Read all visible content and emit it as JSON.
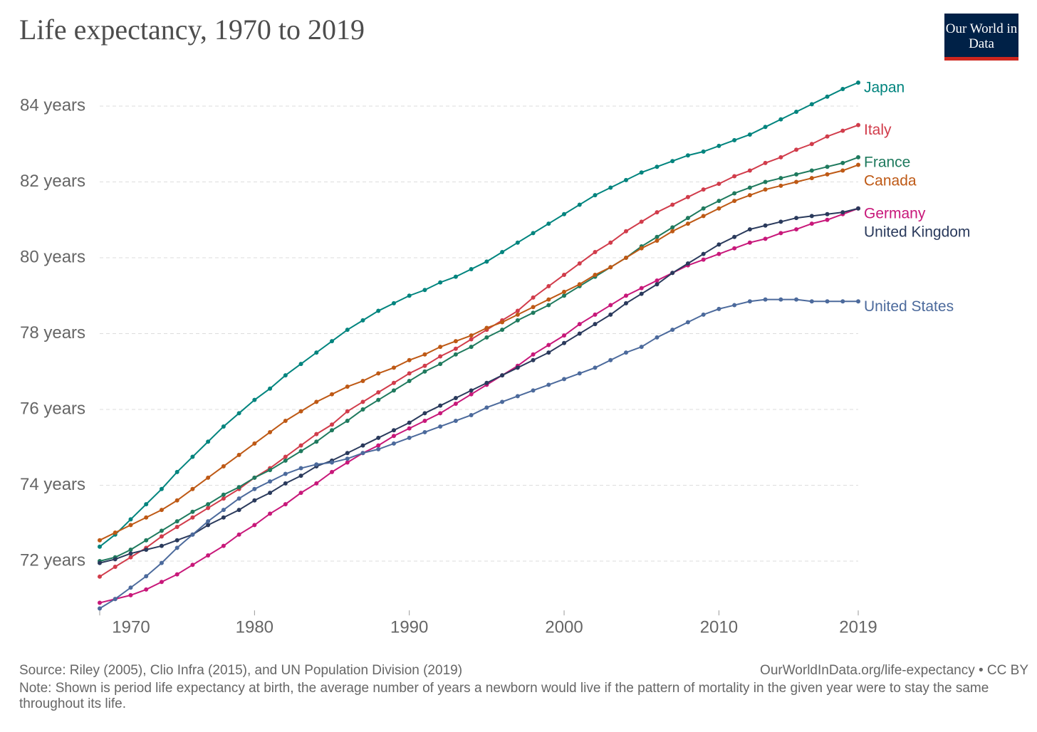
{
  "title": "Life expectancy, 1970 to 2019",
  "logo": "Our World in Data",
  "source": "Source: Riley (2005), Clio Infra (2015), and UN Population Division (2019)",
  "url": "OurWorldInData.org/life-expectancy • CC BY",
  "note": "Note: Shown is period life expectancy at birth, the average number of years a newborn would live if the pattern of mortality in the given year were to stay the same throughout its life.",
  "chart_data": {
    "type": "line",
    "x": [
      1970,
      1971,
      1972,
      1973,
      1974,
      1975,
      1976,
      1977,
      1978,
      1979,
      1980,
      1981,
      1982,
      1983,
      1984,
      1985,
      1986,
      1987,
      1988,
      1989,
      1990,
      1991,
      1992,
      1993,
      1994,
      1995,
      1996,
      1997,
      1998,
      1999,
      2000,
      2001,
      2002,
      2003,
      2004,
      2005,
      2006,
      2007,
      2008,
      2009,
      2010,
      2011,
      2012,
      2013,
      2014,
      2015,
      2016,
      2017,
      2018,
      2019
    ],
    "xlim": [
      1970,
      2019
    ],
    "xticks": [
      1970,
      1980,
      1990,
      2000,
      2010,
      2019
    ],
    "ylim": [
      70.7,
      84.65
    ],
    "yticks": [
      {
        "value": 72,
        "label": "72 years"
      },
      {
        "value": 74,
        "label": "74 years"
      },
      {
        "value": 76,
        "label": "76 years"
      },
      {
        "value": 78,
        "label": "78 years"
      },
      {
        "value": 80,
        "label": "80 years"
      },
      {
        "value": 82,
        "label": "82 years"
      },
      {
        "value": 84,
        "label": "84 years"
      }
    ],
    "grid": true,
    "series": [
      {
        "name": "Japan",
        "color": "#00847e",
        "values": [
          72.38,
          72.7,
          73.1,
          73.5,
          73.9,
          74.35,
          74.75,
          75.15,
          75.55,
          75.9,
          76.25,
          76.55,
          76.9,
          77.2,
          77.5,
          77.8,
          78.1,
          78.35,
          78.6,
          78.8,
          79.0,
          79.15,
          79.35,
          79.5,
          79.7,
          79.9,
          80.15,
          80.4,
          80.65,
          80.9,
          81.15,
          81.4,
          81.65,
          81.85,
          82.05,
          82.25,
          82.4,
          82.55,
          82.7,
          82.8,
          82.95,
          83.1,
          83.25,
          83.45,
          83.65,
          83.85,
          84.05,
          84.25,
          84.45,
          84.62
        ]
      },
      {
        "name": "Italy",
        "color": "#d13c4b",
        "values": [
          71.59,
          71.85,
          72.1,
          72.35,
          72.65,
          72.9,
          73.15,
          73.4,
          73.65,
          73.9,
          74.2,
          74.45,
          74.75,
          75.05,
          75.35,
          75.6,
          75.95,
          76.2,
          76.45,
          76.7,
          76.95,
          77.15,
          77.4,
          77.6,
          77.85,
          78.1,
          78.35,
          78.6,
          78.95,
          79.25,
          79.55,
          79.85,
          80.15,
          80.4,
          80.7,
          80.95,
          81.2,
          81.4,
          81.6,
          81.8,
          81.95,
          82.15,
          82.3,
          82.5,
          82.65,
          82.85,
          83.0,
          83.2,
          83.35,
          83.5
        ]
      },
      {
        "name": "France",
        "color": "#1f7a5e",
        "values": [
          72.0,
          72.1,
          72.3,
          72.55,
          72.8,
          73.05,
          73.3,
          73.5,
          73.75,
          73.95,
          74.2,
          74.4,
          74.65,
          74.9,
          75.15,
          75.45,
          75.7,
          76.0,
          76.25,
          76.5,
          76.75,
          77.0,
          77.2,
          77.45,
          77.65,
          77.9,
          78.1,
          78.35,
          78.55,
          78.75,
          79.0,
          79.25,
          79.5,
          79.75,
          80.0,
          80.3,
          80.55,
          80.8,
          81.05,
          81.3,
          81.5,
          81.7,
          81.85,
          82.0,
          82.1,
          82.2,
          82.3,
          82.4,
          82.5,
          82.65
        ]
      },
      {
        "name": "Canada",
        "color": "#be5915",
        "values": [
          72.55,
          72.75,
          72.95,
          73.15,
          73.35,
          73.6,
          73.9,
          74.2,
          74.5,
          74.8,
          75.1,
          75.4,
          75.7,
          75.95,
          76.2,
          76.4,
          76.6,
          76.75,
          76.95,
          77.1,
          77.3,
          77.45,
          77.65,
          77.8,
          77.95,
          78.15,
          78.3,
          78.5,
          78.7,
          78.9,
          79.1,
          79.3,
          79.55,
          79.75,
          80.0,
          80.25,
          80.45,
          80.7,
          80.9,
          81.1,
          81.3,
          81.5,
          81.65,
          81.8,
          81.9,
          82.0,
          82.1,
          82.2,
          82.3,
          82.45
        ]
      },
      {
        "name": "Germany",
        "color": "#c8187a",
        "values": [
          70.9,
          71.0,
          71.1,
          71.25,
          71.45,
          71.65,
          71.9,
          72.15,
          72.4,
          72.7,
          72.95,
          73.25,
          73.5,
          73.8,
          74.05,
          74.35,
          74.6,
          74.85,
          75.05,
          75.3,
          75.5,
          75.7,
          75.9,
          76.15,
          76.4,
          76.65,
          76.9,
          77.15,
          77.45,
          77.7,
          77.95,
          78.25,
          78.5,
          78.75,
          79.0,
          79.2,
          79.4,
          79.6,
          79.8,
          79.95,
          80.1,
          80.25,
          80.4,
          80.5,
          80.65,
          80.75,
          80.9,
          81.0,
          81.15,
          81.3
        ]
      },
      {
        "name": "United Kingdom",
        "color": "#2a3a5c",
        "values": [
          71.95,
          72.05,
          72.2,
          72.3,
          72.4,
          72.55,
          72.7,
          72.95,
          73.15,
          73.35,
          73.6,
          73.8,
          74.05,
          74.25,
          74.5,
          74.65,
          74.85,
          75.05,
          75.25,
          75.45,
          75.65,
          75.9,
          76.1,
          76.3,
          76.5,
          76.7,
          76.9,
          77.1,
          77.3,
          77.5,
          77.75,
          78.0,
          78.25,
          78.5,
          78.8,
          79.05,
          79.3,
          79.6,
          79.85,
          80.1,
          80.35,
          80.55,
          80.75,
          80.85,
          80.95,
          81.05,
          81.1,
          81.15,
          81.2,
          81.3
        ]
      },
      {
        "name": "United States",
        "color": "#4c6a9c",
        "values": [
          70.75,
          71.0,
          71.3,
          71.6,
          71.95,
          72.35,
          72.7,
          73.05,
          73.35,
          73.65,
          73.9,
          74.1,
          74.3,
          74.45,
          74.55,
          74.6,
          74.7,
          74.85,
          74.95,
          75.1,
          75.25,
          75.4,
          75.55,
          75.7,
          75.85,
          76.05,
          76.2,
          76.35,
          76.5,
          76.65,
          76.8,
          76.95,
          77.1,
          77.3,
          77.5,
          77.65,
          77.9,
          78.1,
          78.3,
          78.5,
          78.65,
          78.75,
          78.85,
          78.9,
          78.9,
          78.9,
          78.85,
          78.85,
          78.85,
          78.85
        ]
      }
    ]
  }
}
